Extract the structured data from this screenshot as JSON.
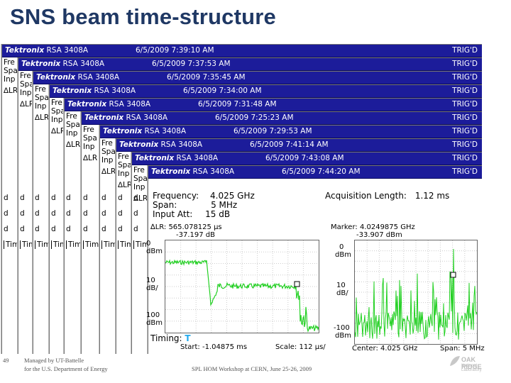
{
  "slide": {
    "title": "SNS beam time-structure",
    "page_number": "49",
    "footer_left_1": "Managed by UT-Battelle",
    "footer_left_2": "for the U.S. Department of Energy",
    "footer_center": "SPL HOM Workshop at CERN, June 25-26, 2009",
    "logo_text": "OAK RIDGE",
    "logo_sub": "National Laboratory"
  },
  "captures": [
    {
      "date": "6/5/2009 7:39:10 AM"
    },
    {
      "date": "6/5/2009 7:37:53 AM"
    },
    {
      "date": "6/5/2009 7:35:45 AM"
    },
    {
      "date": "6/5/2009 7:34:00 AM"
    },
    {
      "date": "6/5/2009 7:31:48 AM"
    },
    {
      "date": "6/5/2009 7:25:23 AM"
    },
    {
      "date": "6/5/2009 7:29:53 AM"
    },
    {
      "date": "6/5/2009 7:41:14 AM"
    },
    {
      "date": "6/5/2009 7:43:08 AM"
    },
    {
      "date": "6/5/2009 7:44:20 AM"
    }
  ],
  "instrument": {
    "brand": "Tektronix",
    "model": "RSA 3408A",
    "status": "TRIG'D"
  },
  "fragments": {
    "fr": "Fre",
    "sp": "Spa",
    "inp": "Inp",
    "lr": "∆LR",
    "d": "d",
    "timing": "Timi"
  },
  "front": {
    "frequency_label": "Frequency:",
    "frequency_value": "4.025 GHz",
    "span_label": "Span:",
    "span_value": "5 MHz",
    "input_label": "Input Att:",
    "input_value": "15 dB",
    "acq_label": "Acquisition Length:",
    "acq_value": "1.12 ms",
    "lr_readout": "∆LR: 565.078125 µs",
    "lr_value": "-37.197 dB",
    "marker_label": "Marker: 4.0249875 GHz",
    "marker_value": "-33.907 dBm",
    "timing_label": "Timing:",
    "start_label": "Start: -1.04875 ms",
    "scale_label": "Scale: 112 µs/",
    "center_label": "Center: 4.025 GHz",
    "span_bottom": "Span: 5 MHz"
  },
  "left_axis": {
    "t1": "0",
    "t1b": "dBm",
    "t2": "10",
    "t2b": "dB/",
    "t3": "100",
    "t3b": "dBm"
  },
  "right_axis": {
    "t1": "0",
    "t1b": "dBm",
    "t2": "10",
    "t2b": "dB/",
    "t3": "-100",
    "t3b": "dBm"
  },
  "colors": {
    "bar": "#1c1c9a",
    "trace": "#22d022",
    "title": "#1f3864"
  }
}
